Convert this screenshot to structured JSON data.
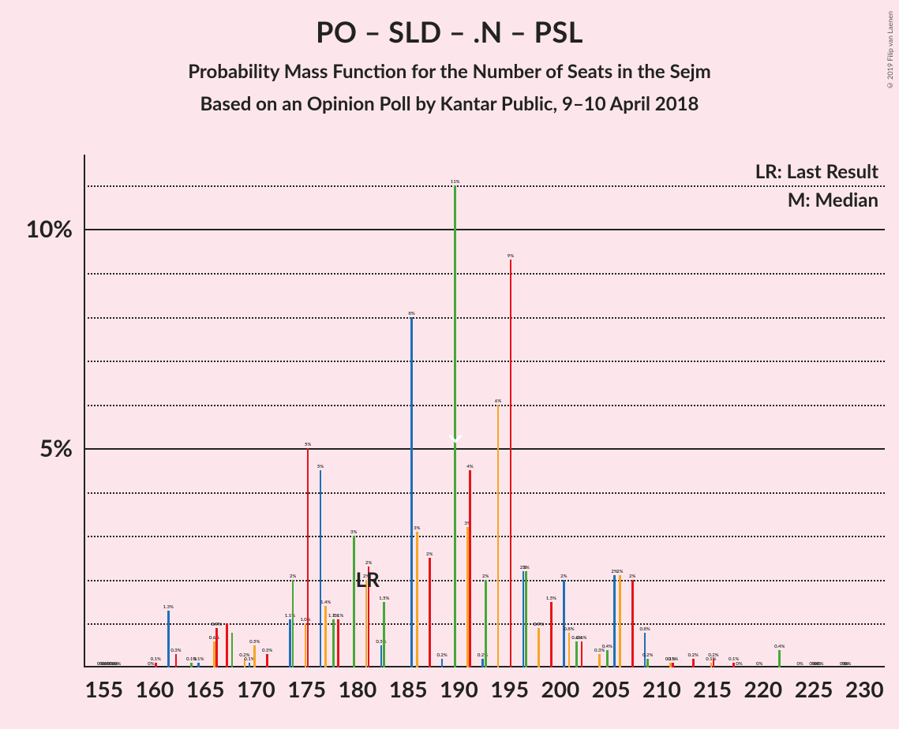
{
  "title": "PO – SLD – .N – PSL",
  "subtitle": "Probability Mass Function for the Number of Seats in the Sejm",
  "subtitle2": "Based on an Opinion Poll by Kantar Public, 9–10 April 2018",
  "credit": "© 2019 Filip van Laenen",
  "legend_lr": "LR: Last Result",
  "legend_m": "M: Median",
  "lr_indicator_label": "LR",
  "chart": {
    "type": "bar",
    "background_color": "#fce6eb",
    "axis_color": "#222222",
    "grid_major_color": "#222222",
    "grid_minor_color": "#222222",
    "ylim": [
      0,
      11.7
    ],
    "y_major_ticks": [
      5,
      10
    ],
    "y_minor_step": 1,
    "xlim": [
      153,
      232
    ],
    "x_major_ticks": [
      155,
      160,
      165,
      170,
      175,
      180,
      185,
      190,
      195,
      200,
      205,
      210,
      215,
      220,
      225,
      230
    ],
    "lr_x": 182,
    "median": {
      "series_index": 0,
      "x": 190
    },
    "series_colors": [
      "#45a838",
      "#f5a623",
      "#e8131a",
      "#1f6fb8"
    ],
    "bar_group_width": 0.95,
    "label_fontsize_pt": 6,
    "title_fontsize_pt": 36,
    "subtitle_fontsize_pt": 24,
    "axis_tick_fontsize_pt": 28,
    "data": [
      {
        "x": 155,
        "v": [
          0,
          0,
          0,
          0
        ],
        "lbl": [
          "0%",
          "0%",
          "0%",
          "0%"
        ]
      },
      {
        "x": 156,
        "v": [
          0,
          0,
          0,
          0
        ],
        "lbl": [
          "0%",
          "0%",
          "0%",
          "0%"
        ]
      },
      {
        "x": 157,
        "v": [
          0,
          0,
          0,
          0
        ]
      },
      {
        "x": 158,
        "v": [
          0,
          0,
          0,
          0
        ]
      },
      {
        "x": 159,
        "v": [
          0,
          0,
          0,
          0
        ]
      },
      {
        "x": 160,
        "v": [
          0,
          0,
          0.1,
          0
        ],
        "lbl": [
          "0%",
          "",
          "0.1%",
          ""
        ]
      },
      {
        "x": 161,
        "v": [
          0,
          0,
          0,
          1.3
        ],
        "lbl": [
          "",
          "",
          "",
          "1.3%"
        ]
      },
      {
        "x": 162,
        "v": [
          0,
          0,
          0.3,
          0
        ],
        "lbl": [
          "",
          "",
          "0.3%",
          ""
        ]
      },
      {
        "x": 163,
        "v": [
          0,
          0,
          0,
          0
        ]
      },
      {
        "x": 164,
        "v": [
          0.1,
          0,
          0,
          0.1
        ],
        "lbl": [
          "0.1%",
          "",
          "",
          "0.1%"
        ]
      },
      {
        "x": 165,
        "v": [
          0,
          0,
          0,
          0
        ]
      },
      {
        "x": 166,
        "v": [
          0,
          0.6,
          0.9,
          0
        ],
        "lbl": [
          "",
          "0.6%",
          "0.9%",
          ""
        ]
      },
      {
        "x": 167,
        "v": [
          0,
          0,
          1.0,
          0
        ],
        "lbl": [
          "",
          "",
          "",
          ""
        ]
      },
      {
        "x": 168,
        "v": [
          0.8,
          0,
          0,
          0
        ],
        "lbl": [
          "",
          "",
          "",
          ""
        ]
      },
      {
        "x": 169,
        "v": [
          0,
          0.2,
          0,
          0.1
        ],
        "lbl": [
          "",
          "0.2%",
          "",
          "0.1%"
        ]
      },
      {
        "x": 170,
        "v": [
          0,
          0.5,
          0,
          0
        ],
        "lbl": [
          "",
          "0.5%",
          "",
          ""
        ]
      },
      {
        "x": 171,
        "v": [
          0,
          0,
          0.3,
          0
        ],
        "lbl": [
          "",
          "",
          "0.3%",
          ""
        ]
      },
      {
        "x": 172,
        "v": [
          0,
          0,
          0,
          0
        ]
      },
      {
        "x": 173,
        "v": [
          0,
          0,
          0,
          1.1
        ],
        "lbl": [
          "",
          "",
          "",
          "1.1%"
        ]
      },
      {
        "x": 174,
        "v": [
          2.0,
          0,
          0,
          0
        ],
        "lbl": [
          "2%",
          "",
          "",
          ""
        ]
      },
      {
        "x": 175,
        "v": [
          0,
          1.0,
          5.0,
          0
        ],
        "lbl": [
          "",
          "1.0%",
          "5%",
          ""
        ]
      },
      {
        "x": 176,
        "v": [
          0,
          0,
          0,
          4.5
        ],
        "lbl": [
          "",
          "",
          "",
          "5%"
        ]
      },
      {
        "x": 177,
        "v": [
          0,
          1.4,
          0,
          0
        ],
        "lbl": [
          "",
          "1.4%",
          "",
          ""
        ]
      },
      {
        "x": 178,
        "v": [
          1.1,
          0,
          1.1,
          0
        ],
        "lbl": [
          "1.1%",
          "",
          "1.1%",
          ""
        ]
      },
      {
        "x": 179,
        "v": [
          0,
          0,
          0,
          0
        ]
      },
      {
        "x": 180,
        "v": [
          3.0,
          0,
          0,
          0
        ],
        "lbl": [
          "3%",
          "",
          "",
          ""
        ]
      },
      {
        "x": 181,
        "v": [
          0,
          2.0,
          2.3,
          0
        ],
        "lbl": [
          "",
          "2%",
          "2%",
          ""
        ]
      },
      {
        "x": 182,
        "v": [
          0,
          0,
          0,
          0.5
        ],
        "lbl": [
          "",
          "",
          "",
          "0.5%"
        ]
      },
      {
        "x": 183,
        "v": [
          1.5,
          0,
          0,
          0
        ],
        "lbl": [
          "1.5%",
          "",
          "",
          ""
        ]
      },
      {
        "x": 184,
        "v": [
          0,
          0,
          0,
          0
        ]
      },
      {
        "x": 185,
        "v": [
          0,
          0,
          0,
          8.0
        ],
        "lbl": [
          "",
          "",
          "",
          "8%"
        ]
      },
      {
        "x": 186,
        "v": [
          0,
          3.1,
          0,
          0
        ],
        "lbl": [
          "",
          "3%",
          "",
          ""
        ]
      },
      {
        "x": 187,
        "v": [
          0,
          0,
          2.5,
          0
        ],
        "lbl": [
          "",
          "",
          "2%",
          ""
        ]
      },
      {
        "x": 188,
        "v": [
          0,
          0,
          0,
          0.2
        ],
        "lbl": [
          "",
          "",
          "",
          "0.2%"
        ]
      },
      {
        "x": 189,
        "v": [
          0,
          0,
          0,
          0
        ]
      },
      {
        "x": 190,
        "v": [
          11.0,
          0,
          0,
          0
        ],
        "lbl": [
          "11%",
          "",
          "",
          ""
        ]
      },
      {
        "x": 191,
        "v": [
          0,
          3.2,
          4.5,
          0
        ],
        "lbl": [
          "",
          "3%",
          "4%",
          ""
        ]
      },
      {
        "x": 192,
        "v": [
          0,
          0,
          0,
          0.2
        ],
        "lbl": [
          "",
          "",
          "",
          "0.2%"
        ]
      },
      {
        "x": 193,
        "v": [
          2.0,
          0,
          0,
          0
        ],
        "lbl": [
          "2%",
          "",
          "",
          ""
        ]
      },
      {
        "x": 194,
        "v": [
          0,
          6.0,
          0,
          0
        ],
        "lbl": [
          "",
          "6%",
          "",
          ""
        ]
      },
      {
        "x": 195,
        "v": [
          0,
          0,
          9.3,
          0
        ],
        "lbl": [
          "",
          "",
          "9%",
          ""
        ]
      },
      {
        "x": 196,
        "v": [
          0,
          0,
          0,
          2.2
        ],
        "lbl": [
          "",
          "",
          "",
          "2%"
        ]
      },
      {
        "x": 197,
        "v": [
          2.2,
          0,
          0,
          0
        ],
        "lbl": [
          "2%",
          "",
          "",
          ""
        ]
      },
      {
        "x": 198,
        "v": [
          0,
          0.9,
          0,
          0
        ],
        "lbl": [
          "",
          "0.9%",
          "",
          ""
        ]
      },
      {
        "x": 199,
        "v": [
          0,
          0,
          1.5,
          0
        ],
        "lbl": [
          "",
          "",
          "1.5%",
          ""
        ]
      },
      {
        "x": 200,
        "v": [
          0,
          0,
          0,
          2.0
        ],
        "lbl": [
          "",
          "",
          "",
          "2%"
        ]
      },
      {
        "x": 201,
        "v": [
          0,
          0.8,
          0,
          0
        ],
        "lbl": [
          "",
          "0.8%",
          "",
          ""
        ]
      },
      {
        "x": 202,
        "v": [
          0.6,
          0,
          0.6,
          0
        ],
        "lbl": [
          "0.6%",
          "",
          "0.6%",
          ""
        ]
      },
      {
        "x": 203,
        "v": [
          0,
          0,
          0,
          0
        ]
      },
      {
        "x": 204,
        "v": [
          0,
          0.3,
          0,
          0
        ],
        "lbl": [
          "",
          "0.3%",
          "",
          ""
        ]
      },
      {
        "x": 205,
        "v": [
          0.4,
          0,
          0,
          2.1
        ],
        "lbl": [
          "0.4%",
          "",
          "",
          "2%"
        ]
      },
      {
        "x": 206,
        "v": [
          0,
          2.1,
          0,
          0
        ],
        "lbl": [
          "",
          "2%",
          "",
          ""
        ]
      },
      {
        "x": 207,
        "v": [
          0,
          0,
          2.0,
          0
        ],
        "lbl": [
          "",
          "",
          "2%",
          ""
        ]
      },
      {
        "x": 208,
        "v": [
          0,
          0,
          0,
          0.8
        ],
        "lbl": [
          "",
          "",
          "",
          "0.8%"
        ]
      },
      {
        "x": 209,
        "v": [
          0.2,
          0,
          0,
          0
        ],
        "lbl": [
          "0.2%",
          "",
          "",
          ""
        ]
      },
      {
        "x": 210,
        "v": [
          0,
          0,
          0,
          0
        ]
      },
      {
        "x": 211,
        "v": [
          0,
          0.1,
          0.1,
          0
        ],
        "lbl": [
          "",
          "0.1%",
          "0.1%",
          ""
        ]
      },
      {
        "x": 212,
        "v": [
          0,
          0,
          0,
          0
        ]
      },
      {
        "x": 213,
        "v": [
          0,
          0,
          0.2,
          0
        ],
        "lbl": [
          "",
          "",
          "0.2%",
          ""
        ]
      },
      {
        "x": 214,
        "v": [
          0,
          0,
          0,
          0
        ]
      },
      {
        "x": 215,
        "v": [
          0,
          0.1,
          0.2,
          0
        ],
        "lbl": [
          "",
          "0.1%",
          "0.2%",
          ""
        ]
      },
      {
        "x": 216,
        "v": [
          0,
          0,
          0,
          0
        ]
      },
      {
        "x": 217,
        "v": [
          0,
          0,
          0.1,
          0
        ],
        "lbl": [
          "",
          "",
          "0.1%",
          ""
        ]
      },
      {
        "x": 218,
        "v": [
          0,
          0,
          0,
          0
        ],
        "lbl": [
          "0%",
          "",
          "",
          ""
        ]
      },
      {
        "x": 219,
        "v": [
          0,
          0,
          0,
          0
        ]
      },
      {
        "x": 220,
        "v": [
          0,
          0,
          0,
          0
        ],
        "lbl": [
          "0%",
          "",
          "",
          ""
        ]
      },
      {
        "x": 221,
        "v": [
          0,
          0,
          0,
          0
        ]
      },
      {
        "x": 222,
        "v": [
          0.4,
          0,
          0,
          0
        ],
        "lbl": [
          "0.4%",
          "",
          "",
          ""
        ]
      },
      {
        "x": 223,
        "v": [
          0,
          0,
          0,
          0
        ]
      },
      {
        "x": 224,
        "v": [
          0,
          0,
          0,
          0
        ],
        "lbl": [
          "0%",
          "",
          "",
          ""
        ]
      },
      {
        "x": 225,
        "v": [
          0,
          0,
          0,
          0
        ],
        "lbl": [
          "",
          "0%",
          "0%",
          "0%"
        ]
      },
      {
        "x": 226,
        "v": [
          0,
          0,
          0,
          0
        ],
        "lbl": [
          "0%",
          "",
          "",
          ""
        ]
      },
      {
        "x": 227,
        "v": [
          0,
          0,
          0,
          0
        ]
      },
      {
        "x": 228,
        "v": [
          0,
          0,
          0,
          0
        ],
        "lbl": [
          "",
          "0%",
          "0%",
          "0%"
        ]
      },
      {
        "x": 229,
        "v": [
          0,
          0,
          0,
          0
        ]
      },
      {
        "x": 230,
        "v": [
          0,
          0,
          0,
          0
        ]
      }
    ]
  }
}
